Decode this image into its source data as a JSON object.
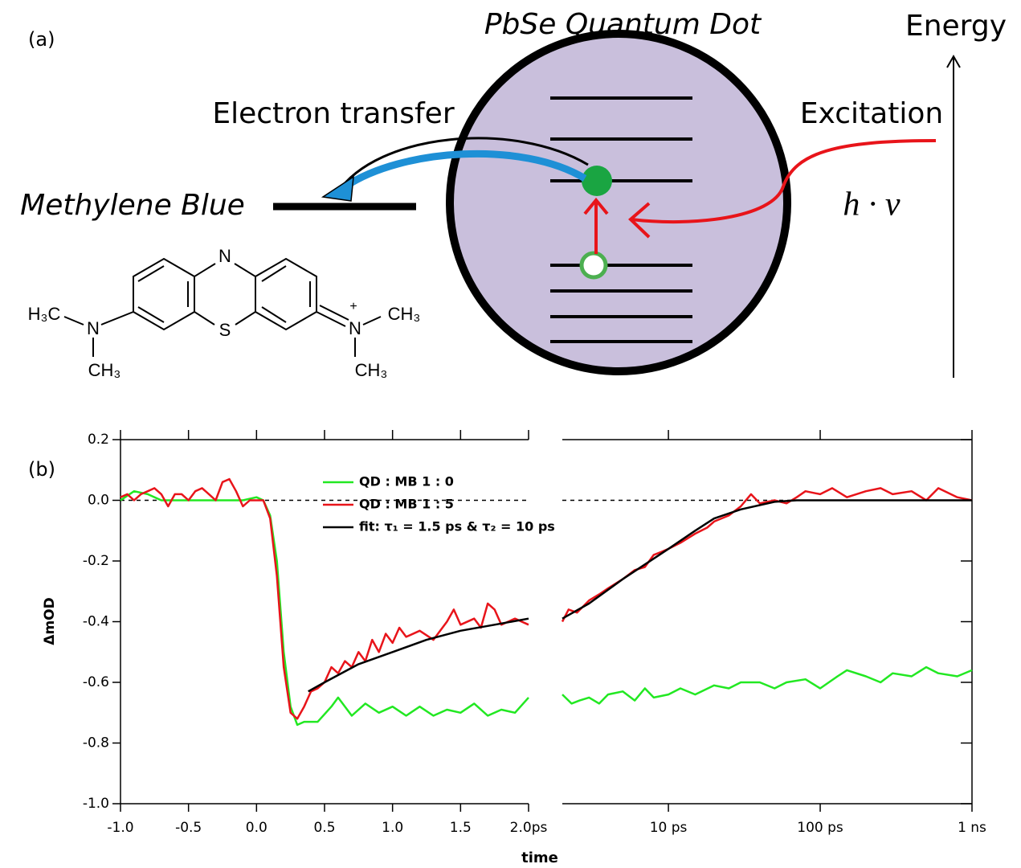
{
  "diagram": {
    "label": "(a)",
    "title": "PbSe Quantum Dot",
    "energy_label": "Energy",
    "transfer_label": "Electron transfer",
    "excitation_label": "Excitation",
    "acceptor_label": "Methylene Blue",
    "photon_label": "h · ν",
    "molecule": [
      "N",
      "S",
      "H₃C",
      "N",
      "CH₃",
      "N",
      "+",
      "CH₃",
      "CH₃"
    ]
  },
  "chart_data": [
    {
      "type": "line",
      "panel_label": "(b)",
      "xlabel": "time",
      "ylabel": "ΔmOD",
      "xscale": "linear",
      "xlim": [
        -1,
        2
      ],
      "xticks": [
        {
          "value": -1,
          "label": "-1.0"
        },
        -0.5,
        {
          "value": 0,
          "label": "0.0"
        },
        0.5,
        {
          "value": 1,
          "label": "1.0"
        },
        1.5,
        {
          "value": 2,
          "label": "2.0ps"
        }
      ],
      "ylim": [
        -1,
        0.2
      ],
      "yticks": [
        0.2,
        {
          "value": 0,
          "label": "0.0"
        },
        -0.2,
        -0.4,
        -0.6,
        -0.8,
        {
          "value": -1,
          "label": "-1.0"
        }
      ],
      "zero_line": true,
      "legend": "top",
      "series": [
        {
          "name": "QD : MB 1 : 0",
          "color": "#22e822",
          "x": [
            -1,
            -0.9,
            -0.8,
            -0.7,
            -0.5,
            -0.3,
            -0.1,
            0,
            0.05,
            0.1,
            0.15,
            0.2,
            0.25,
            0.3,
            0.35,
            0.45,
            0.55,
            0.6,
            0.7,
            0.8,
            0.9,
            1.0,
            1.1,
            1.2,
            1.3,
            1.4,
            1.5,
            1.6,
            1.7,
            1.8,
            1.9,
            2.0
          ],
          "values": [
            0,
            0.03,
            0.02,
            0,
            0,
            0,
            0,
            0.01,
            0,
            -0.05,
            -0.2,
            -0.5,
            -0.68,
            -0.74,
            -0.73,
            -0.73,
            -0.68,
            -0.65,
            -0.71,
            -0.67,
            -0.7,
            -0.68,
            -0.71,
            -0.68,
            -0.71,
            -0.69,
            -0.7,
            -0.67,
            -0.71,
            -0.69,
            -0.7,
            -0.65
          ]
        },
        {
          "name": "QD : MB 1 : 5",
          "color": "#e8141a",
          "x": [
            -1,
            -0.95,
            -0.9,
            -0.85,
            -0.8,
            -0.75,
            -0.7,
            -0.65,
            -0.6,
            -0.55,
            -0.5,
            -0.45,
            -0.4,
            -0.35,
            -0.3,
            -0.25,
            -0.2,
            -0.15,
            -0.1,
            -0.05,
            0,
            0.05,
            0.1,
            0.15,
            0.2,
            0.25,
            0.3,
            0.35,
            0.4,
            0.45,
            0.5,
            0.55,
            0.6,
            0.65,
            0.7,
            0.75,
            0.8,
            0.85,
            0.9,
            0.95,
            1.0,
            1.05,
            1.1,
            1.2,
            1.3,
            1.4,
            1.45,
            1.5,
            1.6,
            1.65,
            1.7,
            1.75,
            1.8,
            1.9,
            2.0
          ],
          "values": [
            0.01,
            0.02,
            0,
            0.02,
            0.03,
            0.04,
            0.02,
            -0.02,
            0.02,
            0.02,
            0,
            0.03,
            0.04,
            0.02,
            0,
            0.06,
            0.07,
            0.03,
            -0.02,
            0,
            0,
            0,
            -0.06,
            -0.25,
            -0.55,
            -0.7,
            -0.72,
            -0.68,
            -0.63,
            -0.62,
            -0.6,
            -0.55,
            -0.57,
            -0.53,
            -0.55,
            -0.5,
            -0.53,
            -0.46,
            -0.5,
            -0.44,
            -0.47,
            -0.42,
            -0.45,
            -0.43,
            -0.46,
            -0.4,
            -0.36,
            -0.41,
            -0.39,
            -0.42,
            -0.34,
            -0.36,
            -0.41,
            -0.39,
            -0.41
          ]
        },
        {
          "name": "fit: τ₁ = 1.5 ps & τ₂ = 10 ps",
          "color": "#000000",
          "x": [
            0.38,
            0.5,
            0.75,
            1.0,
            1.25,
            1.5,
            1.75,
            2.0
          ],
          "values": [
            -0.63,
            -0.6,
            -0.54,
            -0.5,
            -0.46,
            -0.43,
            -0.41,
            -0.39
          ]
        }
      ]
    },
    {
      "type": "line",
      "xscale": "log",
      "xlim": [
        2,
        1000
      ],
      "xticks": [
        {
          "value": 10,
          "label": "10 ps"
        },
        {
          "value": 100,
          "label": "100 ps"
        },
        {
          "value": 1000,
          "label": "1 ns"
        }
      ],
      "ylim": [
        -1,
        0.2
      ],
      "yticks": [
        0.2,
        0,
        -0.2,
        -0.4,
        -0.6,
        -0.8,
        -1
      ],
      "zero_line": true,
      "series": [
        {
          "color": "#22e822",
          "x": [
            2,
            2.3,
            2.6,
            3,
            3.5,
            4,
            5,
            6,
            7,
            8,
            10,
            12,
            15,
            20,
            25,
            30,
            40,
            50,
            60,
            80,
            100,
            130,
            150,
            200,
            250,
            300,
            400,
            500,
            600,
            800,
            1000
          ],
          "values": [
            -0.64,
            -0.67,
            -0.66,
            -0.65,
            -0.67,
            -0.64,
            -0.63,
            -0.66,
            -0.62,
            -0.65,
            -0.64,
            -0.62,
            -0.64,
            -0.61,
            -0.62,
            -0.6,
            -0.6,
            -0.62,
            -0.6,
            -0.59,
            -0.62,
            -0.58,
            -0.56,
            -0.58,
            -0.6,
            -0.57,
            -0.58,
            -0.55,
            -0.57,
            -0.58,
            -0.56
          ]
        },
        {
          "color": "#e8141a",
          "x": [
            2,
            2.2,
            2.5,
            3,
            3.5,
            4,
            5,
            6,
            7,
            8,
            9,
            10,
            12,
            15,
            18,
            20,
            25,
            30,
            35,
            40,
            50,
            60,
            70,
            80,
            100,
            120,
            150,
            200,
            250,
            300,
            400,
            500,
            600,
            800,
            1000
          ],
          "values": [
            -0.4,
            -0.36,
            -0.37,
            -0.33,
            -0.31,
            -0.29,
            -0.26,
            -0.23,
            -0.22,
            -0.18,
            -0.17,
            -0.16,
            -0.14,
            -0.11,
            -0.09,
            -0.07,
            -0.05,
            -0.02,
            0.02,
            -0.01,
            0,
            -0.01,
            0.01,
            0.03,
            0.02,
            0.04,
            0.01,
            0.03,
            0.04,
            0.02,
            0.03,
            0,
            0.04,
            0.01,
            0
          ]
        },
        {
          "color": "#000000",
          "x": [
            2,
            3,
            5,
            10,
            15,
            20,
            30,
            50,
            70,
            1000
          ],
          "values": [
            -0.39,
            -0.34,
            -0.26,
            -0.16,
            -0.1,
            -0.06,
            -0.03,
            -0.005,
            0,
            0
          ]
        }
      ]
    }
  ]
}
